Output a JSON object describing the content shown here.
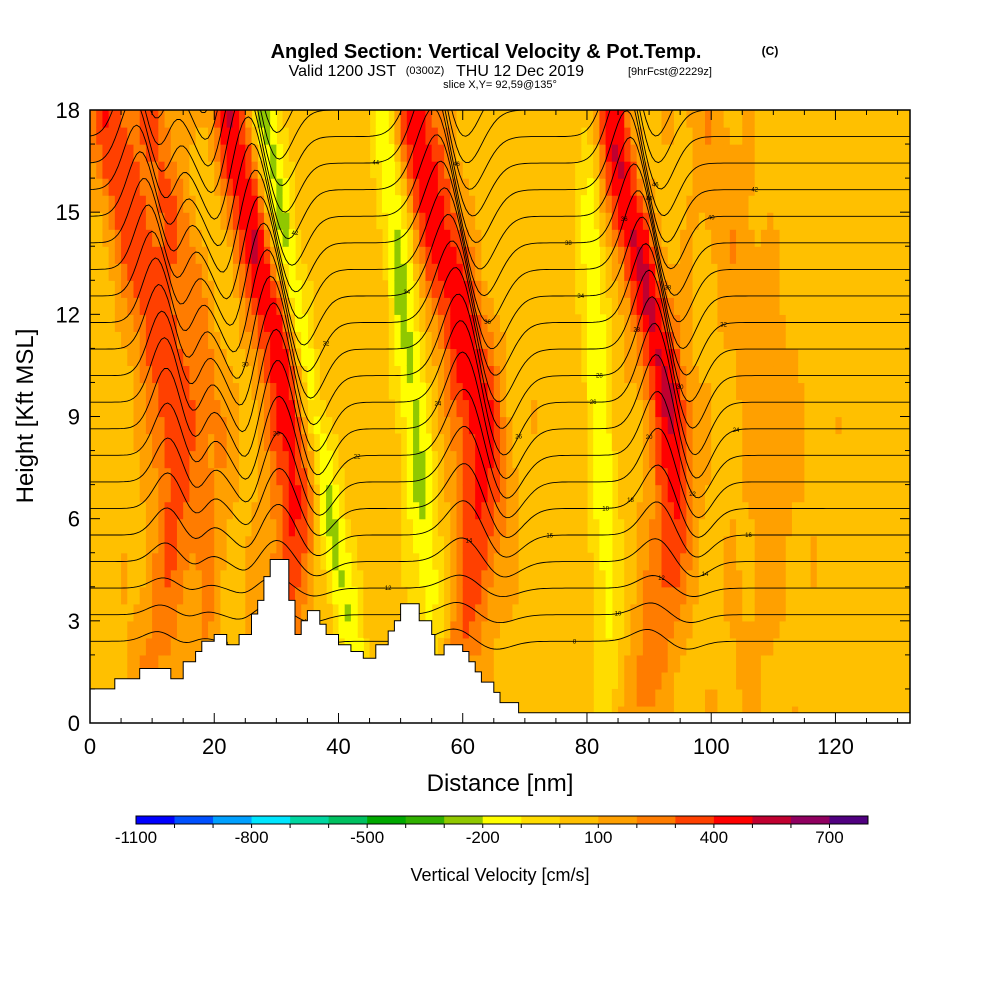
{
  "title": {
    "main": "Angled Section: Vertical Velocity & Pot.Temp.",
    "unit_tag": "(C)",
    "valid_prefix": "Valid 1200 JST",
    "utc_tag": "(0300Z)",
    "valid_date": "THU 12 Dec 2019",
    "fcst_tag": "[9hrFcst@2229z]",
    "slice": "slice X,Y= 92,59@135°"
  },
  "chart_data": {
    "type": "heatmap",
    "xlabel": "Distance [nm]",
    "ylabel": "Height [Kft MSL]",
    "xlim": [
      0,
      132
    ],
    "ylim": [
      0,
      18
    ],
    "x_ticks": [
      0,
      20,
      40,
      60,
      80,
      100,
      120
    ],
    "y_ticks": [
      0,
      3,
      6,
      9,
      12,
      15,
      18
    ],
    "x_minor_step": 5,
    "y_minor_step": 1,
    "colorbar": {
      "label": "Vertical Velocity [cm/s]",
      "min": -1100,
      "max": 800,
      "step": 100,
      "tick_labels": [
        "-1100",
        "-800",
        "-500",
        "-200",
        "100",
        "400",
        "700"
      ],
      "tick_values": [
        -1100,
        -800,
        -500,
        -200,
        100,
        400,
        700
      ],
      "colors": [
        "#0000ff",
        "#0050ff",
        "#00a0ff",
        "#00e6ff",
        "#00d6a0",
        "#00c060",
        "#00a800",
        "#30b000",
        "#90c800",
        "#ffff00",
        "#ffdc00",
        "#ffc000",
        "#ffa000",
        "#ff7c00",
        "#ff4000",
        "#ff0000",
        "#c00030",
        "#900060",
        "#500080"
      ]
    },
    "terrain_kft": [
      [
        0,
        1
      ],
      [
        4,
        1
      ],
      [
        4,
        1.3
      ],
      [
        8,
        1.3
      ],
      [
        8,
        1.6
      ],
      [
        13,
        1.6
      ],
      [
        13,
        1.3
      ],
      [
        15,
        1.3
      ],
      [
        15,
        1.8
      ],
      [
        17,
        1.8
      ],
      [
        17,
        2.1
      ],
      [
        18,
        2.1
      ],
      [
        18,
        2.4
      ],
      [
        20,
        2.4
      ],
      [
        20,
        2.6
      ],
      [
        22,
        2.6
      ],
      [
        22,
        2.3
      ],
      [
        24,
        2.3
      ],
      [
        24,
        2.6
      ],
      [
        26,
        2.6
      ],
      [
        26,
        3.2
      ],
      [
        27,
        3.2
      ],
      [
        27,
        3.6
      ],
      [
        28,
        3.6
      ],
      [
        28,
        4.3
      ],
      [
        29,
        4.3
      ],
      [
        29,
        4.8
      ],
      [
        32,
        4.8
      ],
      [
        32,
        3.6
      ],
      [
        33,
        3.6
      ],
      [
        33,
        2.6
      ],
      [
        34,
        2.6
      ],
      [
        34,
        3.0
      ],
      [
        35,
        3.0
      ],
      [
        35,
        3.3
      ],
      [
        37,
        3.3
      ],
      [
        37,
        2.9
      ],
      [
        38,
        2.9
      ],
      [
        38,
        2.6
      ],
      [
        40,
        2.6
      ],
      [
        40,
        2.3
      ],
      [
        42,
        2.3
      ],
      [
        42,
        2.1
      ],
      [
        44,
        2.1
      ],
      [
        44,
        1.9
      ],
      [
        46,
        1.9
      ],
      [
        46,
        2.3
      ],
      [
        48,
        2.3
      ],
      [
        48,
        2.7
      ],
      [
        49,
        2.7
      ],
      [
        49,
        3.0
      ],
      [
        50,
        3.0
      ],
      [
        50,
        3.5
      ],
      [
        53,
        3.5
      ],
      [
        53,
        3.0
      ],
      [
        55,
        3.0
      ],
      [
        55,
        2.6
      ],
      [
        55.5,
        2.6
      ],
      [
        55.5,
        2.0
      ],
      [
        57,
        2.0
      ],
      [
        57,
        2.3
      ],
      [
        60,
        2.3
      ],
      [
        60,
        2.1
      ],
      [
        61,
        2.1
      ],
      [
        61,
        1.8
      ],
      [
        62,
        1.8
      ],
      [
        62,
        1.5
      ],
      [
        63,
        1.5
      ],
      [
        63,
        1.2
      ],
      [
        65,
        1.2
      ],
      [
        65,
        0.9
      ],
      [
        66,
        0.9
      ],
      [
        66,
        0.6
      ],
      [
        69,
        0.6
      ],
      [
        69,
        0.3
      ],
      [
        132,
        0.3
      ]
    ],
    "updraft_centers_nm": [
      8,
      15,
      27,
      57,
      88
    ],
    "downdraft_centers_nm": [
      36,
      52,
      82
    ],
    "isentrope_values_c": [
      8,
      10,
      12,
      14,
      16,
      18,
      20,
      22,
      24,
      26,
      28,
      30,
      32,
      34,
      36,
      38,
      40,
      42,
      44,
      46,
      48,
      50,
      52
    ]
  }
}
